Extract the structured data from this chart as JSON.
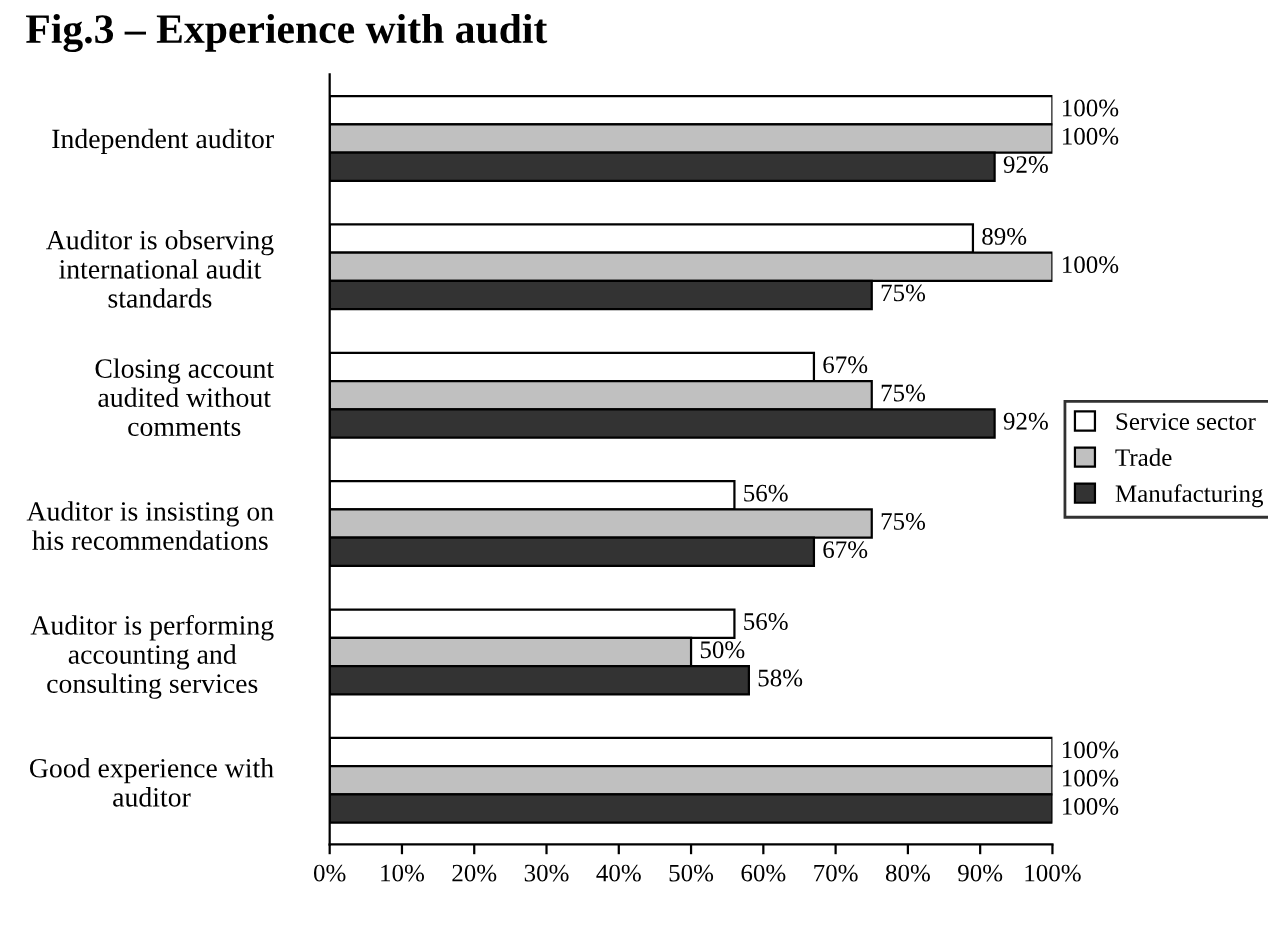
{
  "chart_data": {
    "type": "bar",
    "orientation": "horizontal",
    "title": "Fig.3 – Experience with audit",
    "categories": [
      "Independent auditor",
      "Auditor is observing\ninternational audit\nstandards",
      "Closing account\naudited without\ncomments",
      "Auditor is insisting on\nhis recommendations",
      "Auditor is performing\naccounting and\nconsulting services",
      "Good experience with\nauditor"
    ],
    "series": [
      {
        "name": "Service sector",
        "color": "#ffffff",
        "values": [
          100,
          89,
          67,
          56,
          56,
          100
        ],
        "value_labels": [
          "100%",
          "89%",
          "67%",
          "56%",
          "56%",
          "100%"
        ]
      },
      {
        "name": "Trade",
        "color": "#c0c0c0",
        "values": [
          100,
          100,
          75,
          75,
          50,
          100
        ],
        "value_labels": [
          "100%",
          "100%",
          "75%",
          "75%",
          "50%",
          "100%"
        ]
      },
      {
        "name": "Manufacturing",
        "color": "#333333",
        "values": [
          92,
          75,
          92,
          67,
          58,
          100
        ],
        "value_labels": [
          "92%",
          "75%",
          "92%",
          "67%",
          "58%",
          "100%"
        ]
      }
    ],
    "xlim": [
      0,
      100
    ],
    "xticks": [
      {
        "value": 0,
        "label": "0%"
      },
      {
        "value": 10,
        "label": "10%"
      },
      {
        "value": 20,
        "label": "20%"
      },
      {
        "value": 30,
        "label": "30%"
      },
      {
        "value": 40,
        "label": "40%"
      },
      {
        "value": 50,
        "label": "50%"
      },
      {
        "value": 60,
        "label": "60%"
      },
      {
        "value": 70,
        "label": "70%"
      },
      {
        "value": 80,
        "label": "80%"
      },
      {
        "value": 90,
        "label": "90%"
      },
      {
        "value": 100,
        "label": "100%"
      }
    ],
    "grid": false,
    "legend": "right"
  }
}
